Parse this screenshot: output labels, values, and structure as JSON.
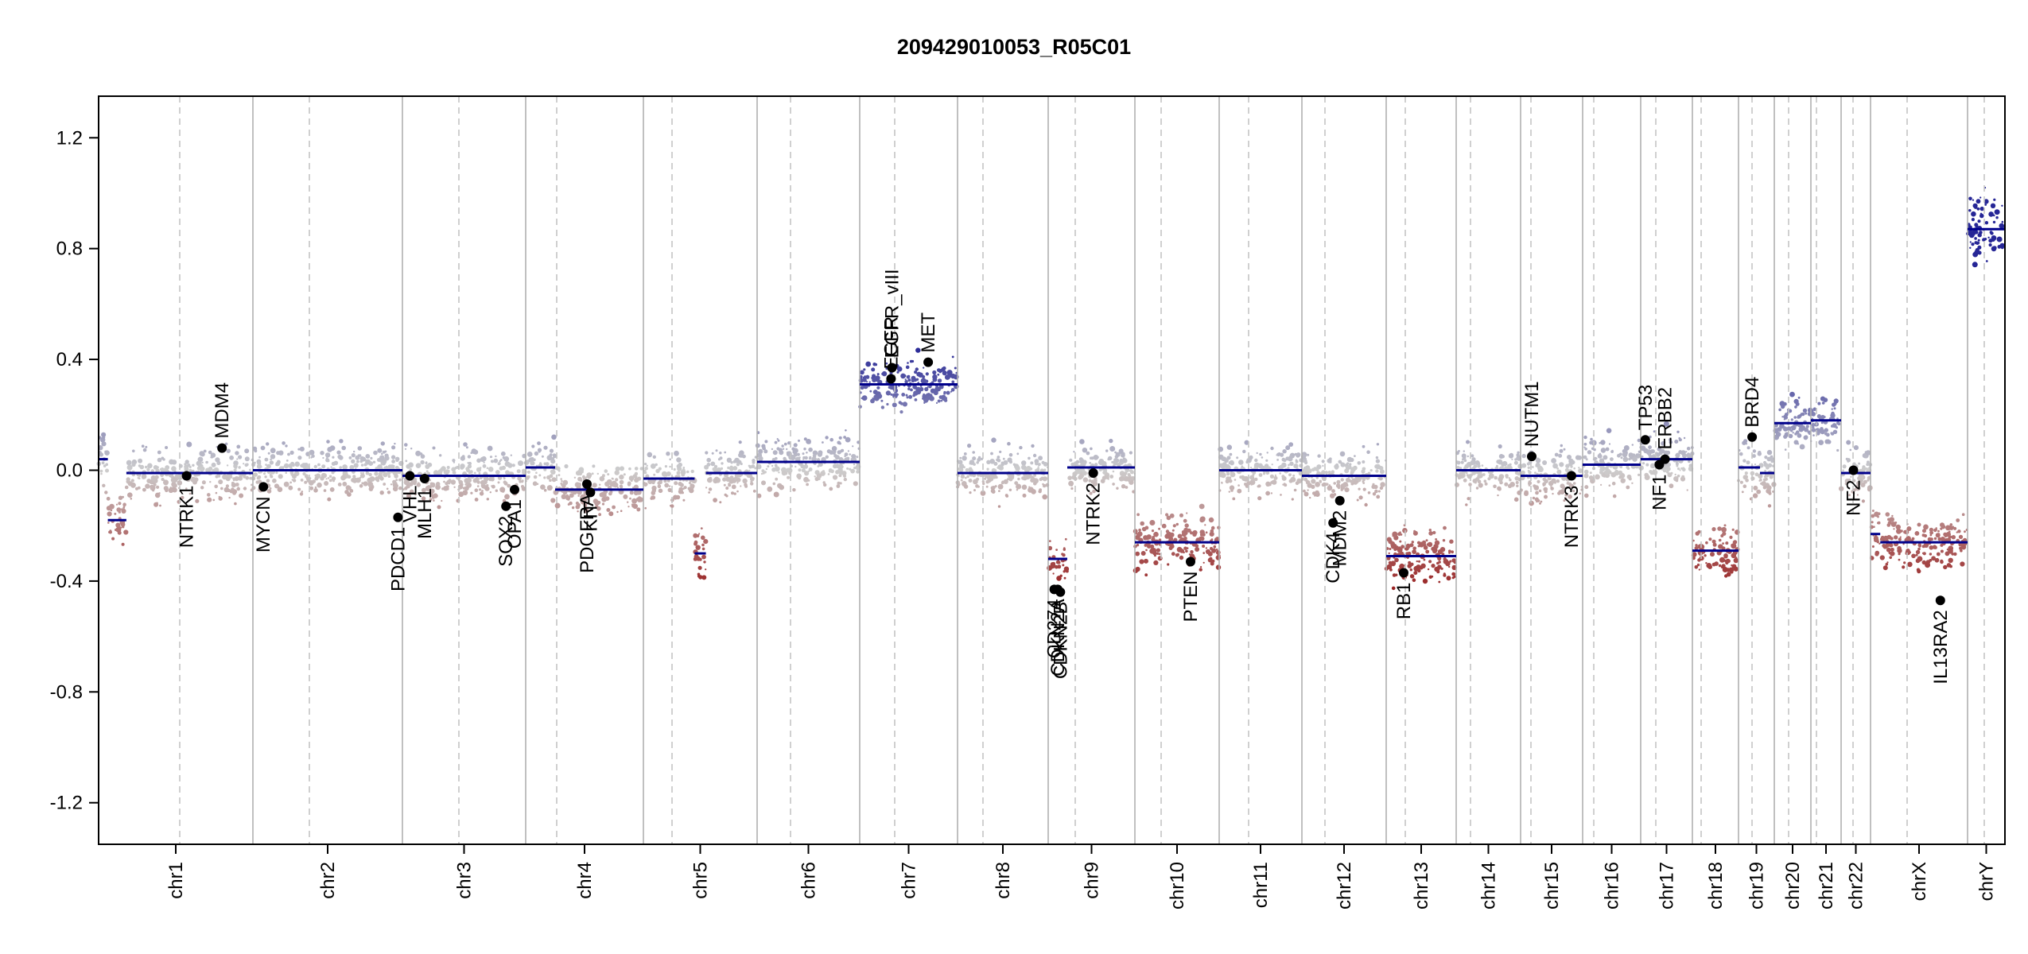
{
  "chart_data": {
    "type": "scatter",
    "title": "209429010053_R05C01",
    "xlabel": "",
    "ylabel": "",
    "ylim": [
      -1.35,
      1.35
    ],
    "yticks": [
      "1.2",
      "0.8",
      "0.4",
      "0.0",
      "-0.4",
      "-0.8",
      "-1.2"
    ],
    "ytick_values": [
      1.2,
      0.8,
      0.4,
      0.0,
      -0.4,
      -0.8,
      -1.2
    ],
    "grid": "vertical chromosome boundaries (solid) and centromeres (dashed)",
    "colors": {
      "gain": "#2b2b9e",
      "neutral": "#cfcfcf",
      "loss": "#a01e1e",
      "segment": "#00008b",
      "gene": "#000000"
    },
    "chromosomes": [
      {
        "name": "chr1",
        "segments": [
          [
            0.0,
            0.06,
            0.04
          ],
          [
            0.06,
            0.18,
            -0.18
          ],
          [
            0.18,
            0.2,
            -0.01
          ],
          [
            0.2,
            1.0,
            -0.01
          ]
        ]
      },
      {
        "name": "chr2",
        "segments": [
          [
            0.0,
            1.0,
            0.0
          ]
        ]
      },
      {
        "name": "chr3",
        "segments": [
          [
            0.0,
            1.0,
            -0.02
          ]
        ]
      },
      {
        "name": "chr4",
        "segments": [
          [
            0.0,
            0.25,
            0.01
          ],
          [
            0.25,
            1.0,
            -0.07
          ]
        ]
      },
      {
        "name": "chr5",
        "segments": [
          [
            0.0,
            0.45,
            -0.03
          ],
          [
            0.45,
            0.55,
            -0.3
          ],
          [
            0.55,
            1.0,
            -0.01
          ]
        ]
      },
      {
        "name": "chr6",
        "segments": [
          [
            0.0,
            1.0,
            0.03
          ]
        ]
      },
      {
        "name": "chr7",
        "segments": [
          [
            0.0,
            1.0,
            0.31
          ]
        ]
      },
      {
        "name": "chr8",
        "segments": [
          [
            0.0,
            1.0,
            -0.01
          ]
        ]
      },
      {
        "name": "chr9",
        "segments": [
          [
            0.0,
            0.22,
            -0.32
          ],
          [
            0.22,
            1.0,
            0.01
          ]
        ]
      },
      {
        "name": "chr10",
        "segments": [
          [
            0.0,
            1.0,
            -0.26
          ]
        ]
      },
      {
        "name": "chr11",
        "segments": [
          [
            0.0,
            1.0,
            0.0
          ]
        ]
      },
      {
        "name": "chr12",
        "segments": [
          [
            0.0,
            1.0,
            -0.02
          ]
        ]
      },
      {
        "name": "chr13",
        "segments": [
          [
            0.0,
            1.0,
            -0.31
          ]
        ]
      },
      {
        "name": "chr14",
        "segments": [
          [
            0.0,
            1.0,
            0.0
          ]
        ]
      },
      {
        "name": "chr15",
        "segments": [
          [
            0.0,
            1.0,
            -0.02
          ]
        ]
      },
      {
        "name": "chr16",
        "segments": [
          [
            0.0,
            1.0,
            0.02
          ]
        ]
      },
      {
        "name": "chr17",
        "segments": [
          [
            0.0,
            1.0,
            0.04
          ]
        ]
      },
      {
        "name": "chr18",
        "segments": [
          [
            0.0,
            1.0,
            -0.29
          ]
        ]
      },
      {
        "name": "chr19",
        "segments": [
          [
            0.0,
            0.6,
            0.01
          ],
          [
            0.6,
            1.0,
            -0.01
          ]
        ]
      },
      {
        "name": "chr20",
        "segments": [
          [
            0.0,
            1.0,
            0.17
          ]
        ]
      },
      {
        "name": "chr21",
        "segments": [
          [
            0.0,
            1.0,
            0.18
          ]
        ]
      },
      {
        "name": "chr22",
        "segments": [
          [
            0.0,
            1.0,
            -0.01
          ]
        ]
      },
      {
        "name": "chrX",
        "segments": [
          [
            0.0,
            0.1,
            -0.23
          ],
          [
            0.1,
            1.0,
            -0.26
          ]
        ]
      },
      {
        "name": "chrY",
        "segments": [
          [
            0.0,
            1.0,
            0.87
          ]
        ]
      }
    ],
    "genes": [
      {
        "name": "NTRK1",
        "chr": "chr1",
        "pos": 0.57,
        "value": -0.02
      },
      {
        "name": "MDM4",
        "chr": "chr1",
        "pos": 0.8,
        "value": 0.08
      },
      {
        "name": "MYCN",
        "chr": "chr2",
        "pos": 0.07,
        "value": -0.06
      },
      {
        "name": "RB1",
        "chr": "chr13",
        "pos": 0.25,
        "value": -0.37
      },
      {
        "name": "EGFR",
        "chr": "chr7",
        "pos": 0.32,
        "value": 0.33
      },
      {
        "name": "EGFR_vIII",
        "chr": "chr7",
        "pos": 0.33,
        "value": 0.37
      },
      {
        "name": "MET",
        "chr": "chr7",
        "pos": 0.7,
        "value": 0.39
      },
      {
        "name": "CDKN2A",
        "chr": "chr9",
        "pos": 0.11,
        "value": -0.43
      },
      {
        "name": "CDKN2B",
        "chr": "chr9",
        "pos": 0.14,
        "value": -0.44
      },
      {
        "name": "CD274",
        "chr": "chr9",
        "pos": 0.07,
        "value": -0.43
      },
      {
        "name": "NTRK2",
        "chr": "chr9",
        "pos": 0.52,
        "value": -0.01
      },
      {
        "name": "PTEN",
        "chr": "chr10",
        "pos": 0.66,
        "value": -0.33
      },
      {
        "name": "CDK4",
        "chr": "chr12",
        "pos": 0.37,
        "value": -0.19
      },
      {
        "name": "MDM2",
        "chr": "chr12",
        "pos": 0.45,
        "value": -0.11
      },
      {
        "name": "NUTM1",
        "chr": "chr15",
        "pos": 0.18,
        "value": 0.05
      },
      {
        "name": "NTRK3",
        "chr": "chr15",
        "pos": 0.82,
        "value": -0.02
      },
      {
        "name": "TP53",
        "chr": "chr17",
        "pos": 0.09,
        "value": 0.11
      },
      {
        "name": "NF1",
        "chr": "chr17",
        "pos": 0.36,
        "value": 0.02
      },
      {
        "name": "ERBB2",
        "chr": "chr17",
        "pos": 0.47,
        "value": 0.04
      },
      {
        "name": "BRD4",
        "chr": "chr19",
        "pos": 0.38,
        "value": 0.12
      },
      {
        "name": "NF2",
        "chr": "chr22",
        "pos": 0.42,
        "value": 0.0
      },
      {
        "name": "IL13RA2",
        "chr": "chrX",
        "pos": 0.72,
        "value": -0.47
      },
      {
        "name": "VHL",
        "chr": "chr3",
        "pos": 0.06,
        "value": -0.02
      },
      {
        "name": "PDCD1",
        "chr": "chr2",
        "pos": 0.97,
        "value": -0.17
      },
      {
        "name": "MLH1",
        "chr": "chr3",
        "pos": 0.18,
        "value": -0.03
      },
      {
        "name": "SOX2",
        "chr": "chr3",
        "pos": 0.84,
        "value": -0.13
      },
      {
        "name": "OPA1",
        "chr": "chr3",
        "pos": 0.91,
        "value": -0.07
      },
      {
        "name": "PDGFRA",
        "chr": "chr4",
        "pos": 0.52,
        "value": -0.05
      },
      {
        "name": "KIT",
        "chr": "chr4",
        "pos": 0.55,
        "value": -0.08
      }
    ]
  }
}
